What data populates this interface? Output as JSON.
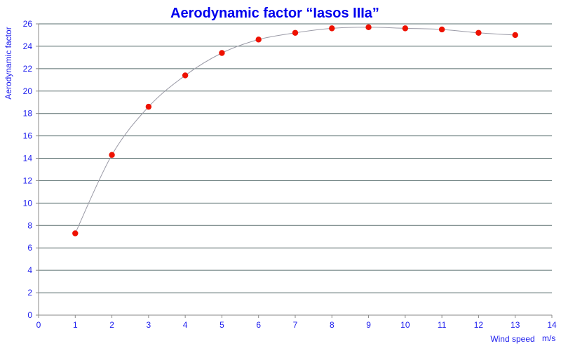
{
  "chart_data": {
    "type": "scatter",
    "title": "Aerodynamic factor “Iasos IIIa”",
    "ylabel": "Aerodynamic factor",
    "xlabel": "Wind speed",
    "xunit": "m/s",
    "xlim": [
      0,
      14
    ],
    "ylim": [
      0,
      26
    ],
    "x_ticks": [
      0,
      1,
      2,
      3,
      4,
      5,
      6,
      7,
      8,
      9,
      10,
      11,
      12,
      13,
      14
    ],
    "y_ticks": [
      0,
      2,
      4,
      6,
      8,
      10,
      12,
      14,
      16,
      18,
      20,
      22,
      24,
      26
    ],
    "grid": "horizontal",
    "legend": "none",
    "series": [
      {
        "x": [
          1,
          2,
          3,
          4,
          5,
          6,
          7,
          8,
          9,
          10,
          11,
          12,
          13
        ],
        "y": [
          7.3,
          14.3,
          18.6,
          21.4,
          23.4,
          24.6,
          25.2,
          25.6,
          25.7,
          25.6,
          25.5,
          25.2,
          25.0
        ],
        "marker_color": "#ee1100",
        "line": "smooth",
        "line_color": "#9a9aa6"
      }
    ],
    "colors": {
      "title": "#0000ee",
      "axis_text": "#2020ee",
      "grid": "#5a6f6f",
      "axis": "#8a8a8a"
    }
  }
}
